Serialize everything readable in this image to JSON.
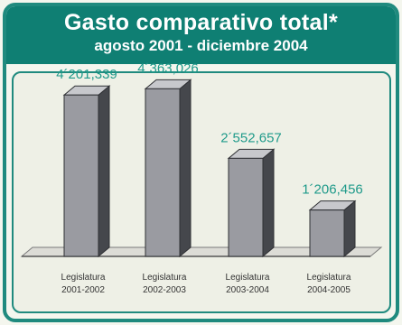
{
  "header": {
    "title": "Gasto comparativo total*",
    "subtitle": "agosto 2001 - diciembre 2004"
  },
  "chart_data": {
    "type": "bar",
    "title": "Gasto comparativo total*",
    "subtitle": "agosto 2001 - diciembre 2004",
    "categories": [
      [
        "Legislatura",
        "2001-2002"
      ],
      [
        "Legislatura",
        "2002-2003"
      ],
      [
        "Legislatura",
        "2003-2004"
      ],
      [
        "Legislatura",
        "2004-2005"
      ]
    ],
    "values": [
      4201339,
      4363026,
      2552657,
      1206456
    ],
    "data_labels": [
      "4´201,339",
      "4´363,026",
      "2´552,657",
      "1´206,456"
    ],
    "xlabel": "",
    "ylabel": "",
    "ylim": [
      0,
      4700000
    ],
    "grid": false,
    "legend": "none",
    "colors": {
      "bar_front": "#9a9ba1",
      "bar_side": "#45474c",
      "bar_top": "#c7c8cc",
      "label": "#1f9a8a",
      "header": "#0f7f73",
      "border": "#1f8a7e"
    }
  }
}
